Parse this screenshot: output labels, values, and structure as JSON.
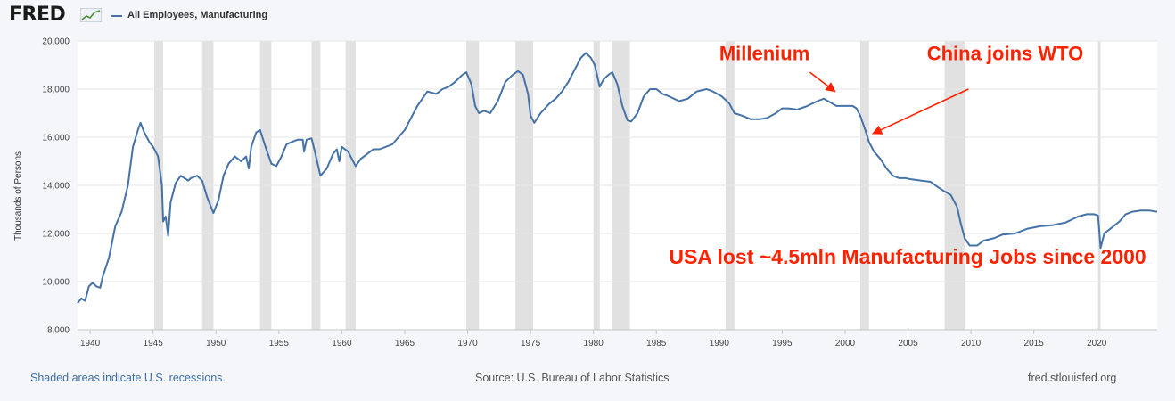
{
  "header": {
    "logo_text": "FRED",
    "legend_label": "All Employees, Manufacturing"
  },
  "footer": {
    "recession_note": "Shaded areas indicate U.S. recessions.",
    "source": "Source: U.S. Bureau of Labor Statistics",
    "site": "fred.stlouisfed.org"
  },
  "colors": {
    "series": "#4572a7",
    "recession": "#e1e1e1",
    "annotation": "#ff2200",
    "plot_bg": "#ffffff",
    "page_bg": "#f4f6fa"
  },
  "chart_data": {
    "type": "line",
    "title": "",
    "xlabel": "",
    "ylabel": "Thousands of Persons",
    "xlim": [
      1939.0,
      2024.8
    ],
    "ylim": [
      8000,
      20000
    ],
    "grid": true,
    "legend_position": "top-left",
    "x_ticks": [
      1940,
      1945,
      1950,
      1955,
      1960,
      1965,
      1970,
      1975,
      1980,
      1985,
      1990,
      1995,
      2000,
      2005,
      2010,
      2015,
      2020
    ],
    "y_ticks": [
      8000,
      10000,
      12000,
      14000,
      16000,
      18000,
      20000
    ],
    "y_tick_labels": [
      "8,000",
      "10,000",
      "12,000",
      "14,000",
      "16,000",
      "18,000",
      "20,000"
    ],
    "recessions": [
      [
        1945.1,
        1945.8
      ],
      [
        1948.9,
        1949.8
      ],
      [
        1953.5,
        1954.4
      ],
      [
        1957.6,
        1958.3
      ],
      [
        1960.3,
        1961.1
      ],
      [
        1969.9,
        1970.9
      ],
      [
        1973.8,
        1975.2
      ],
      [
        1980.0,
        1980.5
      ],
      [
        1981.5,
        1982.9
      ],
      [
        1990.5,
        1991.2
      ],
      [
        2001.2,
        2001.9
      ],
      [
        2007.9,
        2009.5
      ],
      [
        2020.1,
        2020.3
      ]
    ],
    "series": [
      {
        "name": "All Employees, Manufacturing",
        "color": "#4572a7",
        "points": [
          [
            1939.0,
            9100
          ],
          [
            1939.3,
            9300
          ],
          [
            1939.6,
            9200
          ],
          [
            1939.9,
            9800
          ],
          [
            1940.2,
            9950
          ],
          [
            1940.5,
            9800
          ],
          [
            1940.8,
            9750
          ],
          [
            1941.0,
            10200
          ],
          [
            1941.5,
            11000
          ],
          [
            1942.0,
            12300
          ],
          [
            1942.5,
            12900
          ],
          [
            1943.0,
            14000
          ],
          [
            1943.4,
            15600
          ],
          [
            1943.8,
            16300
          ],
          [
            1944.0,
            16600
          ],
          [
            1944.3,
            16200
          ],
          [
            1944.7,
            15800
          ],
          [
            1945.0,
            15600
          ],
          [
            1945.4,
            15200
          ],
          [
            1945.7,
            14000
          ],
          [
            1945.8,
            12500
          ],
          [
            1946.0,
            12700
          ],
          [
            1946.2,
            11900
          ],
          [
            1946.4,
            13300
          ],
          [
            1946.8,
            14100
          ],
          [
            1947.2,
            14400
          ],
          [
            1947.8,
            14200
          ],
          [
            1948.0,
            14300
          ],
          [
            1948.5,
            14400
          ],
          [
            1948.9,
            14200
          ],
          [
            1949.3,
            13500
          ],
          [
            1949.8,
            12850
          ],
          [
            1950.2,
            13400
          ],
          [
            1950.6,
            14400
          ],
          [
            1951.0,
            14900
          ],
          [
            1951.5,
            15200
          ],
          [
            1952.0,
            15000
          ],
          [
            1952.4,
            15200
          ],
          [
            1952.6,
            14700
          ],
          [
            1952.8,
            15600
          ],
          [
            1953.2,
            16200
          ],
          [
            1953.5,
            16300
          ],
          [
            1954.0,
            15500
          ],
          [
            1954.4,
            14900
          ],
          [
            1954.8,
            14800
          ],
          [
            1955.2,
            15200
          ],
          [
            1955.6,
            15700
          ],
          [
            1956.0,
            15800
          ],
          [
            1956.5,
            15900
          ],
          [
            1956.9,
            15900
          ],
          [
            1957.0,
            15400
          ],
          [
            1957.2,
            15900
          ],
          [
            1957.6,
            15950
          ],
          [
            1957.9,
            15300
          ],
          [
            1958.3,
            14400
          ],
          [
            1958.8,
            14700
          ],
          [
            1959.3,
            15300
          ],
          [
            1959.6,
            15500
          ],
          [
            1959.8,
            15000
          ],
          [
            1960.0,
            15600
          ],
          [
            1960.5,
            15400
          ],
          [
            1960.9,
            15000
          ],
          [
            1961.1,
            14800
          ],
          [
            1961.5,
            15100
          ],
          [
            1962.0,
            15300
          ],
          [
            1962.5,
            15500
          ],
          [
            1963.0,
            15500
          ],
          [
            1964.0,
            15700
          ],
          [
            1965.0,
            16300
          ],
          [
            1966.0,
            17300
          ],
          [
            1966.8,
            17900
          ],
          [
            1967.5,
            17800
          ],
          [
            1968.0,
            18000
          ],
          [
            1968.5,
            18100
          ],
          [
            1969.0,
            18300
          ],
          [
            1969.6,
            18600
          ],
          [
            1969.9,
            18700
          ],
          [
            1970.3,
            18200
          ],
          [
            1970.6,
            17300
          ],
          [
            1970.9,
            17000
          ],
          [
            1971.3,
            17100
          ],
          [
            1971.8,
            17000
          ],
          [
            1972.4,
            17500
          ],
          [
            1973.0,
            18300
          ],
          [
            1973.6,
            18600
          ],
          [
            1974.0,
            18750
          ],
          [
            1974.4,
            18600
          ],
          [
            1974.8,
            17800
          ],
          [
            1975.0,
            16900
          ],
          [
            1975.3,
            16600
          ],
          [
            1975.8,
            17000
          ],
          [
            1976.5,
            17400
          ],
          [
            1977.0,
            17600
          ],
          [
            1977.5,
            17900
          ],
          [
            1978.0,
            18300
          ],
          [
            1978.5,
            18800
          ],
          [
            1979.0,
            19300
          ],
          [
            1979.4,
            19500
          ],
          [
            1979.8,
            19300
          ],
          [
            1980.1,
            19000
          ],
          [
            1980.5,
            18100
          ],
          [
            1980.8,
            18400
          ],
          [
            1981.2,
            18600
          ],
          [
            1981.5,
            18700
          ],
          [
            1981.9,
            18200
          ],
          [
            1982.3,
            17300
          ],
          [
            1982.7,
            16700
          ],
          [
            1983.0,
            16650
          ],
          [
            1983.5,
            17000
          ],
          [
            1984.0,
            17700
          ],
          [
            1984.5,
            18000
          ],
          [
            1985.0,
            18000
          ],
          [
            1985.5,
            17800
          ],
          [
            1986.0,
            17700
          ],
          [
            1986.8,
            17500
          ],
          [
            1987.5,
            17600
          ],
          [
            1988.2,
            17900
          ],
          [
            1989.0,
            18000
          ],
          [
            1989.5,
            17900
          ],
          [
            1990.2,
            17700
          ],
          [
            1990.8,
            17400
          ],
          [
            1991.2,
            17000
          ],
          [
            1991.8,
            16900
          ],
          [
            1992.5,
            16750
          ],
          [
            1993.2,
            16750
          ],
          [
            1993.8,
            16800
          ],
          [
            1994.5,
            17000
          ],
          [
            1995.0,
            17200
          ],
          [
            1995.5,
            17200
          ],
          [
            1996.2,
            17150
          ],
          [
            1997.0,
            17300
          ],
          [
            1997.8,
            17500
          ],
          [
            1998.3,
            17600
          ],
          [
            1998.8,
            17450
          ],
          [
            1999.3,
            17300
          ],
          [
            1999.8,
            17300
          ],
          [
            2000.2,
            17300
          ],
          [
            2000.6,
            17300
          ],
          [
            2000.9,
            17200
          ],
          [
            2001.2,
            16900
          ],
          [
            2001.6,
            16300
          ],
          [
            2001.9,
            15800
          ],
          [
            2002.3,
            15400
          ],
          [
            2002.8,
            15100
          ],
          [
            2003.3,
            14700
          ],
          [
            2003.8,
            14400
          ],
          [
            2004.3,
            14300
          ],
          [
            2004.8,
            14300
          ],
          [
            2005.3,
            14250
          ],
          [
            2006.0,
            14200
          ],
          [
            2006.8,
            14150
          ],
          [
            2007.3,
            13950
          ],
          [
            2007.9,
            13750
          ],
          [
            2008.4,
            13600
          ],
          [
            2008.9,
            13100
          ],
          [
            2009.2,
            12400
          ],
          [
            2009.5,
            11800
          ],
          [
            2009.9,
            11500
          ],
          [
            2010.5,
            11500
          ],
          [
            2011.0,
            11700
          ],
          [
            2011.8,
            11800
          ],
          [
            2012.5,
            11950
          ],
          [
            2013.5,
            12000
          ],
          [
            2014.5,
            12200
          ],
          [
            2015.5,
            12300
          ],
          [
            2016.5,
            12350
          ],
          [
            2017.5,
            12450
          ],
          [
            2018.5,
            12700
          ],
          [
            2019.2,
            12800
          ],
          [
            2019.8,
            12800
          ],
          [
            2020.1,
            12750
          ],
          [
            2020.3,
            11400
          ],
          [
            2020.6,
            12000
          ],
          [
            2021.2,
            12250
          ],
          [
            2021.8,
            12500
          ],
          [
            2022.3,
            12800
          ],
          [
            2022.8,
            12900
          ],
          [
            2023.5,
            12950
          ],
          [
            2024.2,
            12950
          ],
          [
            2024.8,
            12900
          ]
        ]
      }
    ],
    "annotations": [
      {
        "text": "Millenium",
        "x": 1990.0,
        "y": 19200,
        "font_size": 22,
        "arrow_from": [
          1997.2,
          18700
        ],
        "arrow_to": [
          1999.2,
          17900
        ]
      },
      {
        "text": "China joins WTO",
        "x": 2006.5,
        "y": 19200,
        "font_size": 22,
        "arrow_from": [
          2009.8,
          18000
        ],
        "arrow_to": [
          2002.2,
          16150
        ]
      },
      {
        "text": "USA lost ~4.5mln Manufacturing Jobs since 2000",
        "x": 1986.0,
        "y": 10750,
        "font_size": 23,
        "arrow_from": null,
        "arrow_to": null
      }
    ]
  }
}
